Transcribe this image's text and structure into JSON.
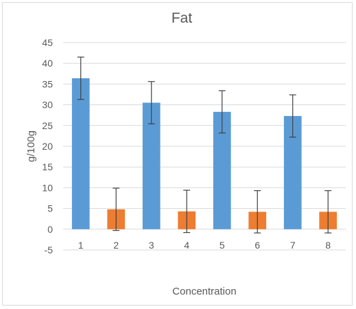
{
  "chart_data": {
    "type": "bar",
    "title": "Fat",
    "xlabel": "Concentration",
    "ylabel": "g/100g",
    "categories": [
      "1",
      "2",
      "3",
      "4",
      "5",
      "6",
      "7",
      "8"
    ],
    "values": [
      36.4,
      4.8,
      30.5,
      4.3,
      28.3,
      4.2,
      27.3,
      4.2
    ],
    "errors": [
      5.1,
      5.1,
      5.1,
      5.1,
      5.1,
      5.1,
      5.1,
      5.1
    ],
    "colors": [
      "#5b9bd5",
      "#ed7d31",
      "#5b9bd5",
      "#ed7d31",
      "#5b9bd5",
      "#ed7d31",
      "#5b9bd5",
      "#ed7d31"
    ],
    "ylim": [
      -5,
      45
    ],
    "yticks": [
      "45",
      "40",
      "35",
      "30",
      "25",
      "20",
      "15",
      "10",
      "5",
      "0",
      "-5"
    ],
    "ytick_values": [
      45,
      40,
      35,
      30,
      25,
      20,
      15,
      10,
      5,
      0,
      -5
    ],
    "grid": true,
    "legend": "none"
  }
}
